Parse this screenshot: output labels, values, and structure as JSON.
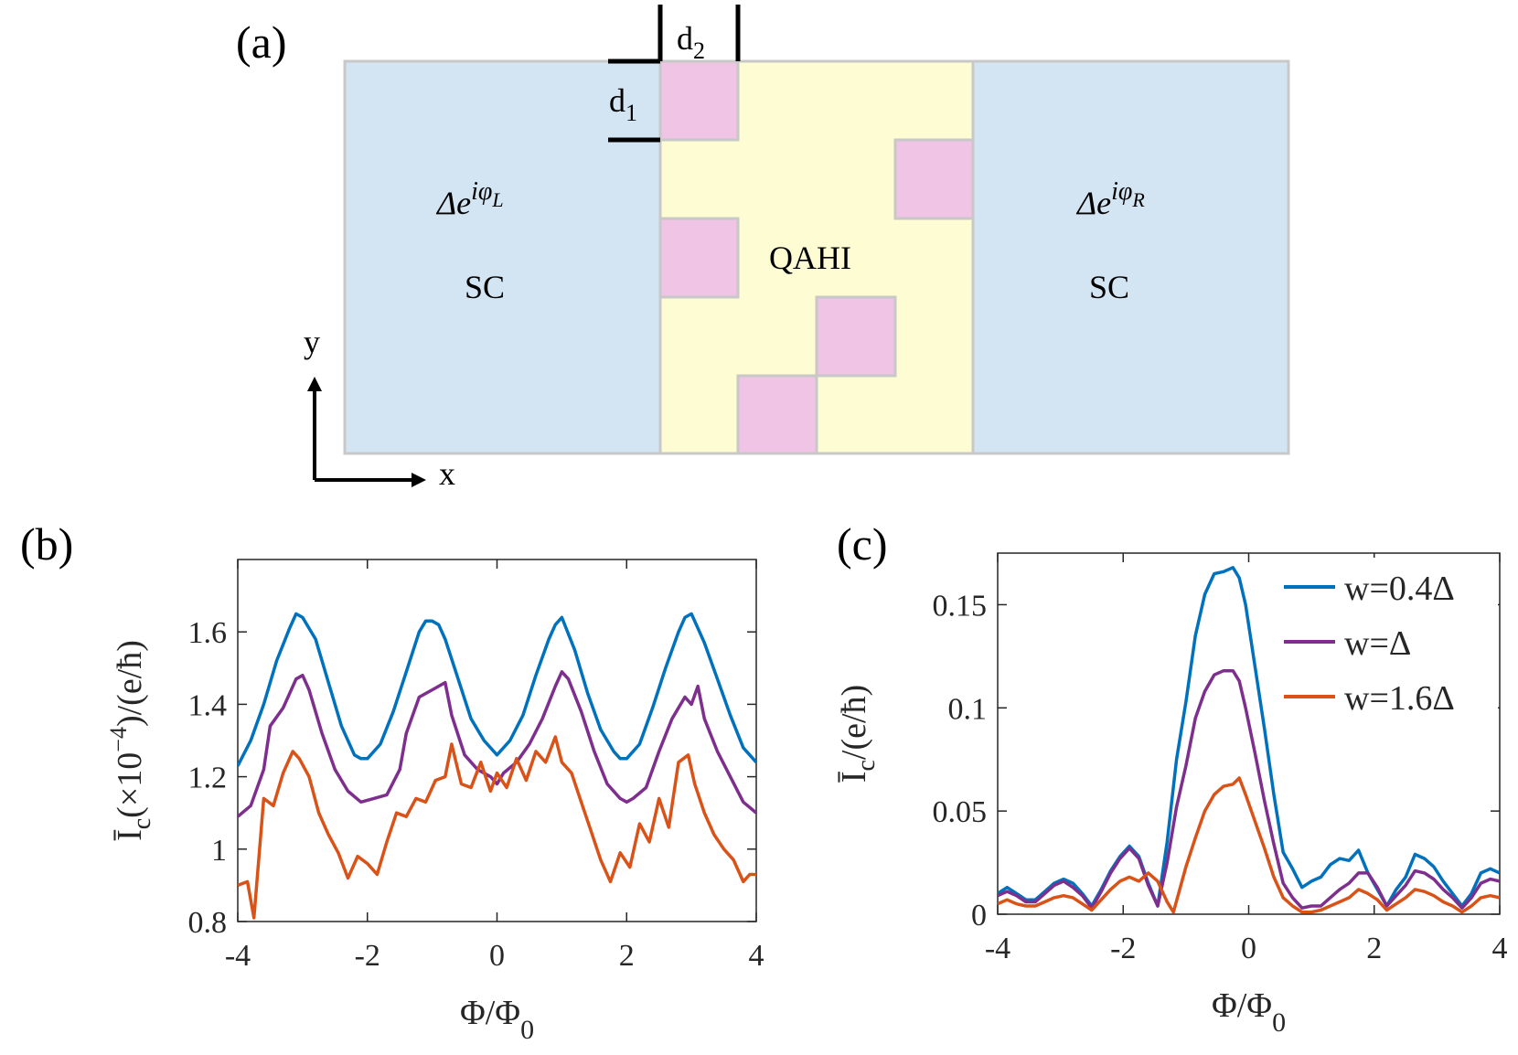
{
  "panel_labels": {
    "a": "(a)",
    "b": "(b)",
    "c": "(c)"
  },
  "schematic": {
    "left_phase": "Δe",
    "left_exp": "iφ",
    "left_sub": "L",
    "right_phase": "Δe",
    "right_exp": "iφ",
    "right_sub": "R",
    "left_label": "SC",
    "right_label": "SC",
    "center_label": "QAHI",
    "d1": "d",
    "d1_sub": "1",
    "d2": "d",
    "d2_sub": "2",
    "axis_y": "y",
    "axis_x": "x",
    "colors": {
      "sc": "#d3e4f3",
      "qahi": "#fdfcd2",
      "impurity": "#efc4e5",
      "border": "#c8c8c8"
    }
  },
  "chart_data": [
    {
      "type": "line",
      "panel": "(b)",
      "xlabel": "Φ/Φ",
      "xlabel_sub": "0",
      "ylabel": "Ī",
      "ylabel_sub": "c",
      "ylabel_rest": "(×10",
      "ylabel_exp": "−4",
      "ylabel_tail": ")/(e/ħ)",
      "xlim": [
        -4,
        4
      ],
      "ylim": [
        0.8,
        1.8
      ],
      "xticks": [
        -4,
        -2,
        0,
        2,
        4
      ],
      "xtick_labels": [
        "-4",
        "-2",
        "0",
        "2",
        "4"
      ],
      "yticks": [
        0.8,
        1,
        1.2,
        1.4,
        1.6
      ],
      "ytick_labels": [
        "0.8",
        "1",
        "1.2",
        "1.4",
        "1.6"
      ],
      "series": [
        {
          "name": "w=0.4Δ",
          "color": "#0072bd",
          "x": [
            -4,
            -3.8,
            -3.6,
            -3.4,
            -3.2,
            -3.1,
            -3,
            -2.8,
            -2.6,
            -2.4,
            -2.2,
            -2.1,
            -2,
            -1.8,
            -1.6,
            -1.4,
            -1.2,
            -1.1,
            -1,
            -0.9,
            -0.8,
            -0.6,
            -0.4,
            -0.2,
            0,
            0.2,
            0.4,
            0.6,
            0.8,
            0.9,
            1,
            1.2,
            1.4,
            1.6,
            1.8,
            1.9,
            2,
            2.2,
            2.4,
            2.6,
            2.8,
            2.9,
            3,
            3.1,
            3.2,
            3.4,
            3.6,
            3.8,
            4
          ],
          "y": [
            1.23,
            1.3,
            1.4,
            1.52,
            1.61,
            1.65,
            1.64,
            1.58,
            1.46,
            1.34,
            1.26,
            1.25,
            1.25,
            1.29,
            1.38,
            1.49,
            1.6,
            1.63,
            1.63,
            1.62,
            1.58,
            1.47,
            1.36,
            1.3,
            1.26,
            1.3,
            1.37,
            1.48,
            1.58,
            1.62,
            1.64,
            1.55,
            1.43,
            1.33,
            1.27,
            1.25,
            1.25,
            1.29,
            1.39,
            1.5,
            1.6,
            1.64,
            1.65,
            1.61,
            1.57,
            1.47,
            1.37,
            1.28,
            1.24
          ]
        },
        {
          "name": "w=Δ",
          "color": "#7e2f8e",
          "x": [
            -4,
            -3.8,
            -3.6,
            -3.5,
            -3.3,
            -3.1,
            -3,
            -2.9,
            -2.7,
            -2.5,
            -2.3,
            -2.1,
            -1.9,
            -1.7,
            -1.5,
            -1.4,
            -1.2,
            -1.0,
            -0.8,
            -0.7,
            -0.5,
            -0.3,
            -0.1,
            0,
            0.1,
            0.3,
            0.5,
            0.7,
            0.9,
            1.0,
            1.1,
            1.3,
            1.5,
            1.7,
            1.9,
            2.0,
            2.1,
            2.3,
            2.5,
            2.7,
            2.9,
            3.0,
            3.1,
            3.2,
            3.4,
            3.6,
            3.8,
            4
          ],
          "y": [
            1.09,
            1.12,
            1.22,
            1.34,
            1.39,
            1.47,
            1.48,
            1.44,
            1.32,
            1.22,
            1.16,
            1.13,
            1.14,
            1.15,
            1.22,
            1.32,
            1.42,
            1.44,
            1.46,
            1.37,
            1.26,
            1.22,
            1.2,
            1.18,
            1.21,
            1.24,
            1.29,
            1.36,
            1.45,
            1.49,
            1.47,
            1.38,
            1.27,
            1.18,
            1.14,
            1.13,
            1.14,
            1.17,
            1.27,
            1.36,
            1.42,
            1.4,
            1.45,
            1.36,
            1.27,
            1.2,
            1.13,
            1.1
          ]
        },
        {
          "name": "w=1.6Δ",
          "color": "#d95319",
          "x": [
            -4,
            -3.85,
            -3.75,
            -3.6,
            -3.45,
            -3.3,
            -3.15,
            -3.05,
            -2.9,
            -2.75,
            -2.6,
            -2.45,
            -2.3,
            -2.15,
            -2.0,
            -1.85,
            -1.7,
            -1.55,
            -1.4,
            -1.25,
            -1.1,
            -0.95,
            -0.8,
            -0.7,
            -0.55,
            -0.4,
            -0.25,
            -0.1,
            0,
            0.15,
            0.3,
            0.45,
            0.6,
            0.75,
            0.9,
            1.0,
            1.15,
            1.3,
            1.45,
            1.6,
            1.75,
            1.9,
            2.05,
            2.2,
            2.35,
            2.5,
            2.65,
            2.8,
            2.95,
            3.05,
            3.2,
            3.35,
            3.5,
            3.65,
            3.8,
            3.9,
            4
          ],
          "y": [
            0.9,
            0.91,
            0.81,
            1.14,
            1.12,
            1.21,
            1.27,
            1.25,
            1.2,
            1.1,
            1.04,
            0.99,
            0.92,
            0.98,
            0.96,
            0.93,
            1.02,
            1.1,
            1.09,
            1.14,
            1.13,
            1.19,
            1.2,
            1.29,
            1.18,
            1.17,
            1.24,
            1.16,
            1.21,
            1.17,
            1.25,
            1.19,
            1.27,
            1.24,
            1.31,
            1.24,
            1.21,
            1.13,
            1.05,
            0.97,
            0.91,
            0.99,
            0.95,
            1.07,
            1.02,
            1.14,
            1.06,
            1.24,
            1.26,
            1.18,
            1.1,
            1.04,
            1.0,
            0.97,
            0.91,
            0.93,
            0.93
          ]
        }
      ]
    },
    {
      "type": "line",
      "panel": "(c)",
      "xlabel": "Φ/Φ",
      "xlabel_sub": "0",
      "ylabel": "Ī",
      "ylabel_sub": "c",
      "ylabel_tail": "/(e/ħ)",
      "xlim": [
        -4,
        4
      ],
      "ylim": [
        0,
        0.175
      ],
      "xticks": [
        -4,
        -2,
        0,
        2,
        4
      ],
      "xtick_labels": [
        "-4",
        "-2",
        "0",
        "2",
        "4"
      ],
      "yticks": [
        0,
        0.05,
        0.1,
        0.15
      ],
      "ytick_labels": [
        "0",
        "0.05",
        "0.1",
        "0.15"
      ],
      "legend_position": "top-right",
      "series": [
        {
          "name": "w=0.4Δ",
          "color": "#0072bd",
          "x": [
            -4,
            -3.85,
            -3.7,
            -3.55,
            -3.4,
            -3.25,
            -3.1,
            -2.95,
            -2.8,
            -2.65,
            -2.5,
            -2.35,
            -2.2,
            -2.05,
            -1.9,
            -1.75,
            -1.6,
            -1.45,
            -1.3,
            -1.15,
            -1.0,
            -0.85,
            -0.7,
            -0.55,
            -0.4,
            -0.25,
            -0.15,
            -0.05,
            0.1,
            0.25,
            0.4,
            0.55,
            0.7,
            0.85,
            1.0,
            1.15,
            1.3,
            1.45,
            1.6,
            1.75,
            1.9,
            2.05,
            2.2,
            2.35,
            2.5,
            2.65,
            2.8,
            2.95,
            3.1,
            3.25,
            3.4,
            3.55,
            3.7,
            3.85,
            4
          ],
          "y": [
            0.01,
            0.013,
            0.01,
            0.007,
            0.007,
            0.011,
            0.015,
            0.017,
            0.015,
            0.01,
            0.004,
            0.012,
            0.021,
            0.028,
            0.033,
            0.028,
            0.015,
            0.004,
            0.035,
            0.075,
            0.103,
            0.135,
            0.155,
            0.165,
            0.166,
            0.168,
            0.163,
            0.15,
            0.12,
            0.09,
            0.058,
            0.03,
            0.022,
            0.013,
            0.016,
            0.018,
            0.024,
            0.027,
            0.026,
            0.031,
            0.02,
            0.012,
            0.004,
            0.012,
            0.018,
            0.029,
            0.027,
            0.023,
            0.016,
            0.01,
            0.004,
            0.01,
            0.02,
            0.022,
            0.02
          ],
          "shape_note": "smoothed"
        },
        {
          "name": "w=Δ",
          "color": "#7e2f8e",
          "x": [
            -4,
            -3.85,
            -3.7,
            -3.55,
            -3.4,
            -3.25,
            -3.1,
            -2.95,
            -2.8,
            -2.65,
            -2.5,
            -2.35,
            -2.2,
            -2.05,
            -1.9,
            -1.75,
            -1.6,
            -1.45,
            -1.3,
            -1.15,
            -1.0,
            -0.85,
            -0.7,
            -0.55,
            -0.4,
            -0.25,
            -0.15,
            -0.05,
            0.1,
            0.25,
            0.4,
            0.55,
            0.7,
            0.85,
            1.0,
            1.15,
            1.3,
            1.45,
            1.6,
            1.75,
            1.9,
            2.05,
            2.2,
            2.35,
            2.5,
            2.65,
            2.8,
            2.95,
            3.1,
            3.25,
            3.4,
            3.55,
            3.7,
            3.85,
            4
          ],
          "y": [
            0.009,
            0.011,
            0.009,
            0.006,
            0.006,
            0.01,
            0.014,
            0.016,
            0.013,
            0.009,
            0.003,
            0.011,
            0.02,
            0.027,
            0.032,
            0.027,
            0.014,
            0.004,
            0.025,
            0.052,
            0.072,
            0.095,
            0.108,
            0.116,
            0.118,
            0.118,
            0.113,
            0.1,
            0.078,
            0.055,
            0.034,
            0.015,
            0.008,
            0.003,
            0.004,
            0.004,
            0.008,
            0.012,
            0.015,
            0.02,
            0.02,
            0.013,
            0.004,
            0.009,
            0.014,
            0.021,
            0.02,
            0.017,
            0.012,
            0.008,
            0.003,
            0.008,
            0.015,
            0.017,
            0.016
          ]
        },
        {
          "name": "w=1.6Δ",
          "color": "#d95319",
          "x": [
            -4,
            -3.85,
            -3.7,
            -3.55,
            -3.4,
            -3.25,
            -3.1,
            -2.95,
            -2.8,
            -2.65,
            -2.5,
            -2.35,
            -2.2,
            -2.05,
            -1.9,
            -1.75,
            -1.6,
            -1.45,
            -1.3,
            -1.2,
            -1.0,
            -0.85,
            -0.7,
            -0.55,
            -0.4,
            -0.25,
            -0.15,
            -0.05,
            0.1,
            0.25,
            0.4,
            0.55,
            0.7,
            0.85,
            1.0,
            1.15,
            1.3,
            1.45,
            1.6,
            1.75,
            1.9,
            2.05,
            2.2,
            2.35,
            2.5,
            2.65,
            2.8,
            2.95,
            3.1,
            3.25,
            3.4,
            3.55,
            3.7,
            3.85,
            4
          ],
          "y": [
            0.005,
            0.007,
            0.005,
            0.004,
            0.004,
            0.006,
            0.008,
            0.009,
            0.008,
            0.005,
            0.002,
            0.007,
            0.012,
            0.016,
            0.018,
            0.016,
            0.02,
            0.016,
            0.006,
            0.001,
            0.023,
            0.037,
            0.05,
            0.058,
            0.062,
            0.063,
            0.066,
            0.058,
            0.045,
            0.032,
            0.018,
            0.008,
            0.004,
            0.001,
            0.001,
            0.002,
            0.004,
            0.006,
            0.008,
            0.012,
            0.01,
            0.007,
            0.002,
            0.005,
            0.008,
            0.012,
            0.011,
            0.009,
            0.006,
            0.004,
            0.001,
            0.004,
            0.008,
            0.009,
            0.008
          ]
        }
      ]
    }
  ]
}
